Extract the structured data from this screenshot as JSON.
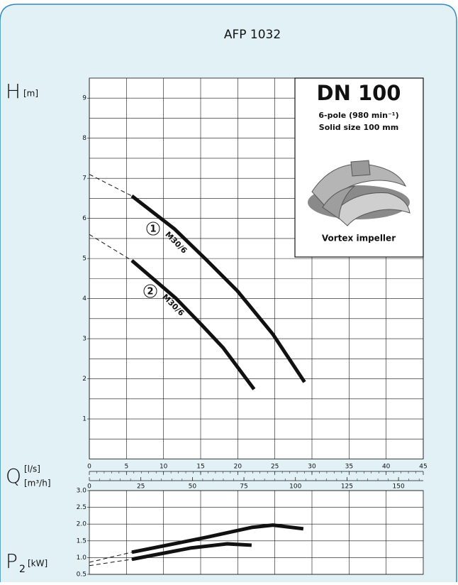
{
  "title": "AFP 1032",
  "info": {
    "title": "DN 100",
    "line1": "6-pole (980 min⁻¹)",
    "line2": "Solid size 100 mm",
    "caption": "Vortex impeller"
  },
  "chart_data": [
    {
      "type": "line",
      "ylabel": "H",
      "ylabel_unit": "[m]",
      "xlabel": "Q",
      "xlabel_unit": "[l/s]",
      "x2label_unit": "[m³/h]",
      "xlim": [
        0,
        45
      ],
      "xticks": [
        0,
        5,
        10,
        15,
        20,
        25,
        30,
        35,
        40,
        45
      ],
      "xminor_step": 1,
      "x2lim": [
        0,
        162
      ],
      "x2ticks": [
        0,
        25,
        50,
        75,
        100,
        125,
        150
      ],
      "x2minor_step": 5,
      "ylim": [
        0,
        9.5
      ],
      "yticks": [
        1,
        2,
        3,
        4,
        5,
        6,
        7,
        8,
        9
      ],
      "ygrid_step": 0.5,
      "series": [
        {
          "name": "M30/6",
          "label": "1",
          "color": "#111111",
          "x": [
            5.73,
            11.46,
            15.7,
            19.96,
            24.7,
            29.0
          ],
          "values": [
            6.56,
            5.74,
            4.98,
            4.19,
            3.12,
            1.92
          ],
          "dashed_x": [
            0,
            5.73
          ],
          "dashed_values": [
            7.1,
            6.56
          ]
        },
        {
          "name": "M30/6",
          "label": "2",
          "color": "#111111",
          "x": [
            5.73,
            11.65,
            14.9,
            18.05,
            22.2
          ],
          "values": [
            4.95,
            4.01,
            3.39,
            2.77,
            1.74
          ],
          "dashed_x": [
            0,
            5.73
          ],
          "dashed_values": [
            5.6,
            4.95
          ]
        }
      ]
    },
    {
      "type": "line",
      "ylabel": "P",
      "ylabel_sub": "2",
      "ylabel_unit": "[kW]",
      "xlim": [
        0,
        45
      ],
      "xgrid_step": 5,
      "ylim": [
        0.5,
        3.0
      ],
      "yticks": [
        0.5,
        {
          "value": 1,
          "label": "1.0"
        },
        1.5,
        {
          "value": 2,
          "label": "2.0"
        },
        2.5,
        {
          "value": 3,
          "label": "3.0"
        }
      ],
      "series": [
        {
          "color": "#111111",
          "x": [
            5.73,
            15.66,
            21.87,
            24.74,
            28.84
          ],
          "values": [
            1.16,
            1.6,
            1.9,
            1.97,
            1.86
          ],
          "dashed_x": [
            0,
            5.73
          ],
          "dashed_values": [
            0.86,
            1.16
          ]
        },
        {
          "color": "#111111",
          "x": [
            5.73,
            13.75,
            18.53,
            21.87
          ],
          "values": [
            0.95,
            1.29,
            1.41,
            1.37
          ],
          "dashed_x": [
            0,
            5.73
          ],
          "dashed_values": [
            0.76,
            0.95
          ]
        }
      ]
    }
  ]
}
